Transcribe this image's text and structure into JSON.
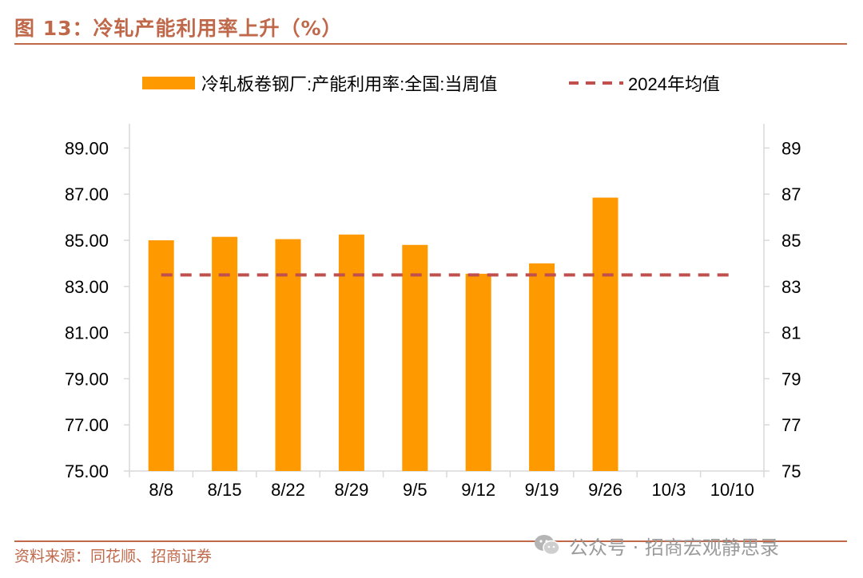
{
  "header": {
    "title": "图 13：冷轧产能利用率上升（%）"
  },
  "footer": {
    "source": "资料来源：同花顺、招商证券",
    "watermark": "公众号 · 招商宏观静思录"
  },
  "colors": {
    "bar": "#ff9900",
    "avg_line": "#c0504d",
    "accent": "#c0684a",
    "axis": "#d9d9d9",
    "text": "#000000"
  },
  "chart_data": {
    "type": "bar",
    "title": "",
    "categories": [
      "8/8",
      "8/15",
      "8/22",
      "8/29",
      "9/5",
      "9/12",
      "9/19",
      "9/26",
      "10/3",
      "10/10"
    ],
    "series": [
      {
        "name": "冷轧板卷钢厂:产能利用率:全国:当周值",
        "type": "bar",
        "axis": "left",
        "values": [
          85.0,
          85.15,
          85.05,
          85.25,
          84.8,
          83.55,
          84.0,
          86.85,
          null,
          null
        ]
      },
      {
        "name": "2024年均值",
        "type": "line",
        "style": "dashed",
        "axis": "left",
        "values": [
          83.5,
          83.5,
          83.5,
          83.5,
          83.5,
          83.5,
          83.5,
          83.5,
          83.5,
          83.5
        ]
      }
    ],
    "y_left": {
      "range": [
        75,
        90
      ],
      "ticks": [
        "75.00",
        "77.00",
        "79.00",
        "81.00",
        "83.00",
        "85.00",
        "87.00",
        "89.00"
      ],
      "tick_values": [
        75,
        77,
        79,
        81,
        83,
        85,
        87,
        89
      ]
    },
    "y_right": {
      "range": [
        75,
        90
      ],
      "ticks": [
        "75",
        "77",
        "79",
        "81",
        "83",
        "85",
        "87",
        "89"
      ],
      "tick_values": [
        75,
        77,
        79,
        81,
        83,
        85,
        87,
        89
      ]
    },
    "legend": {
      "position": "top-center",
      "entries": [
        "冷轧板卷钢厂:产能利用率:全国:当周值",
        "2024年均值"
      ]
    },
    "grid": false
  }
}
